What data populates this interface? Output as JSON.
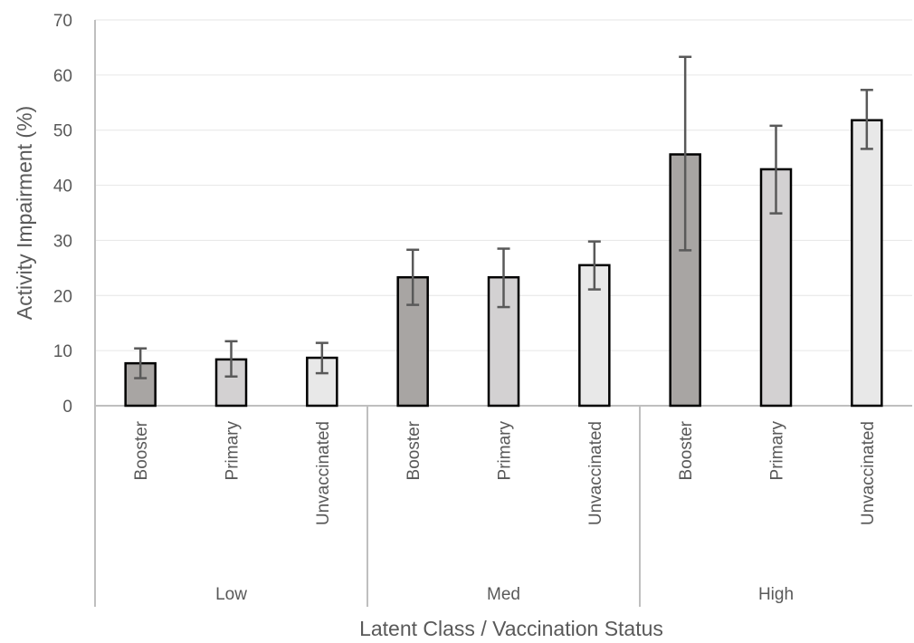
{
  "chart_data": {
    "type": "bar",
    "title": "",
    "xlabel": "Latent Class / Vaccination Status",
    "ylabel": "Activity Impairment (%)",
    "ylim": [
      0,
      70
    ],
    "yticks": [
      0,
      10,
      20,
      30,
      40,
      50,
      60,
      70
    ],
    "grid": true,
    "groups": [
      "Low",
      "Med",
      "High"
    ],
    "subcategories": [
      "Booster",
      "Primary",
      "Unvaccinated"
    ],
    "colors": {
      "Booster": "#a8a5a3",
      "Primary": "#d3d1d2",
      "Unvaccinated": "#e8e8e8",
      "bar_outline": "#000000",
      "error_bar": "#595959",
      "gridline": "#e6e6e6",
      "axis": "#bfbfbf"
    },
    "bars": [
      {
        "group": "Low",
        "category": "Booster",
        "value": 7.7,
        "err_low": 5.0,
        "err_high": 10.4
      },
      {
        "group": "Low",
        "category": "Primary",
        "value": 8.4,
        "err_low": 5.3,
        "err_high": 11.7
      },
      {
        "group": "Low",
        "category": "Unvaccinated",
        "value": 8.7,
        "err_low": 5.9,
        "err_high": 11.4
      },
      {
        "group": "Med",
        "category": "Booster",
        "value": 23.3,
        "err_low": 18.3,
        "err_high": 28.3
      },
      {
        "group": "Med",
        "category": "Primary",
        "value": 23.3,
        "err_low": 17.9,
        "err_high": 28.5
      },
      {
        "group": "Med",
        "category": "Unvaccinated",
        "value": 25.5,
        "err_low": 21.1,
        "err_high": 29.8
      },
      {
        "group": "High",
        "category": "Booster",
        "value": 45.6,
        "err_low": 28.2,
        "err_high": 63.3
      },
      {
        "group": "High",
        "category": "Primary",
        "value": 42.9,
        "err_low": 34.9,
        "err_high": 50.8
      },
      {
        "group": "High",
        "category": "Unvaccinated",
        "value": 51.8,
        "err_low": 46.6,
        "err_high": 57.3
      }
    ]
  }
}
